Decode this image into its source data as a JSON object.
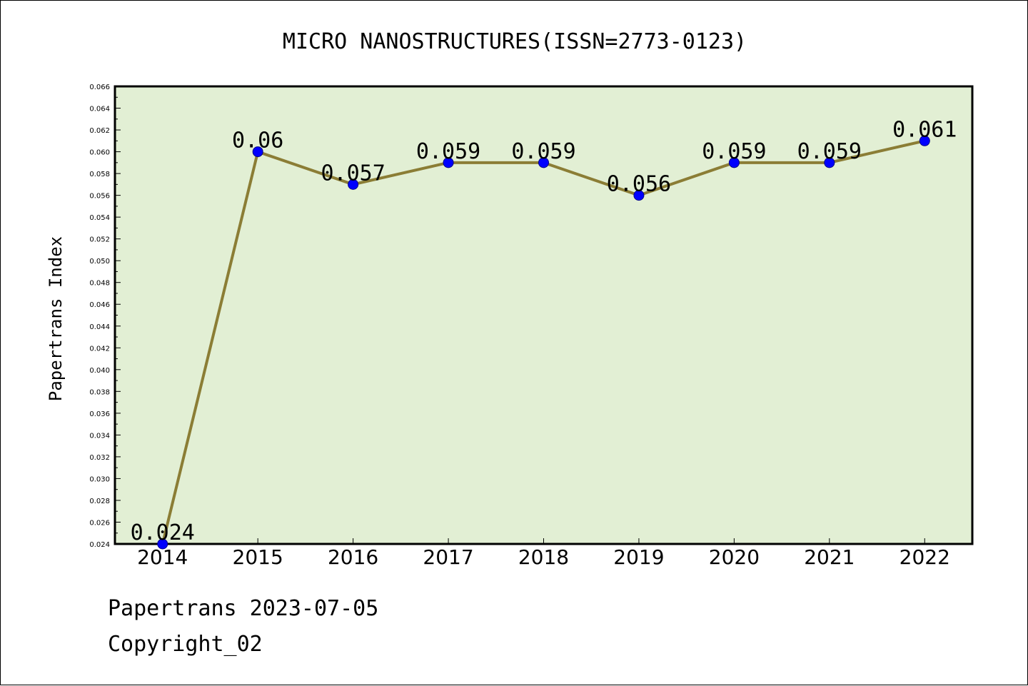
{
  "chart_data": {
    "type": "line",
    "title": "MICRO NANOSTRUCTURES(ISSN=2773-0123)",
    "xlabel": "",
    "ylabel": "Papertrans Index",
    "categories": [
      "2014",
      "2015",
      "2016",
      "2017",
      "2018",
      "2019",
      "2020",
      "2021",
      "2022"
    ],
    "series": [
      {
        "values": [
          0.024,
          0.06,
          0.057,
          0.059,
          0.059,
          0.056,
          0.059,
          0.059,
          0.061
        ],
        "labels": [
          "0.024",
          "0.06",
          "0.057",
          "0.059",
          "0.059",
          "0.056",
          "0.059",
          "0.059",
          "0.061"
        ]
      }
    ],
    "ylim": [
      0.024,
      0.066
    ],
    "y_ticks": [
      "0.024",
      "0.026",
      "0.028",
      "0.030",
      "0.032",
      "0.034",
      "0.036",
      "0.038",
      "0.040",
      "0.042",
      "0.044",
      "0.046",
      "0.048",
      "0.050",
      "0.052",
      "0.054",
      "0.056",
      "0.058",
      "0.060",
      "0.062",
      "0.064",
      "0.066"
    ],
    "grid": false,
    "legend": "none",
    "colors": {
      "plot_background": "#e2efd4",
      "line": "#8b7d35",
      "marker": "#0000ff"
    }
  },
  "footer": {
    "source": "Papertrans 2023-07-05",
    "copyright": "Copyright_02"
  }
}
